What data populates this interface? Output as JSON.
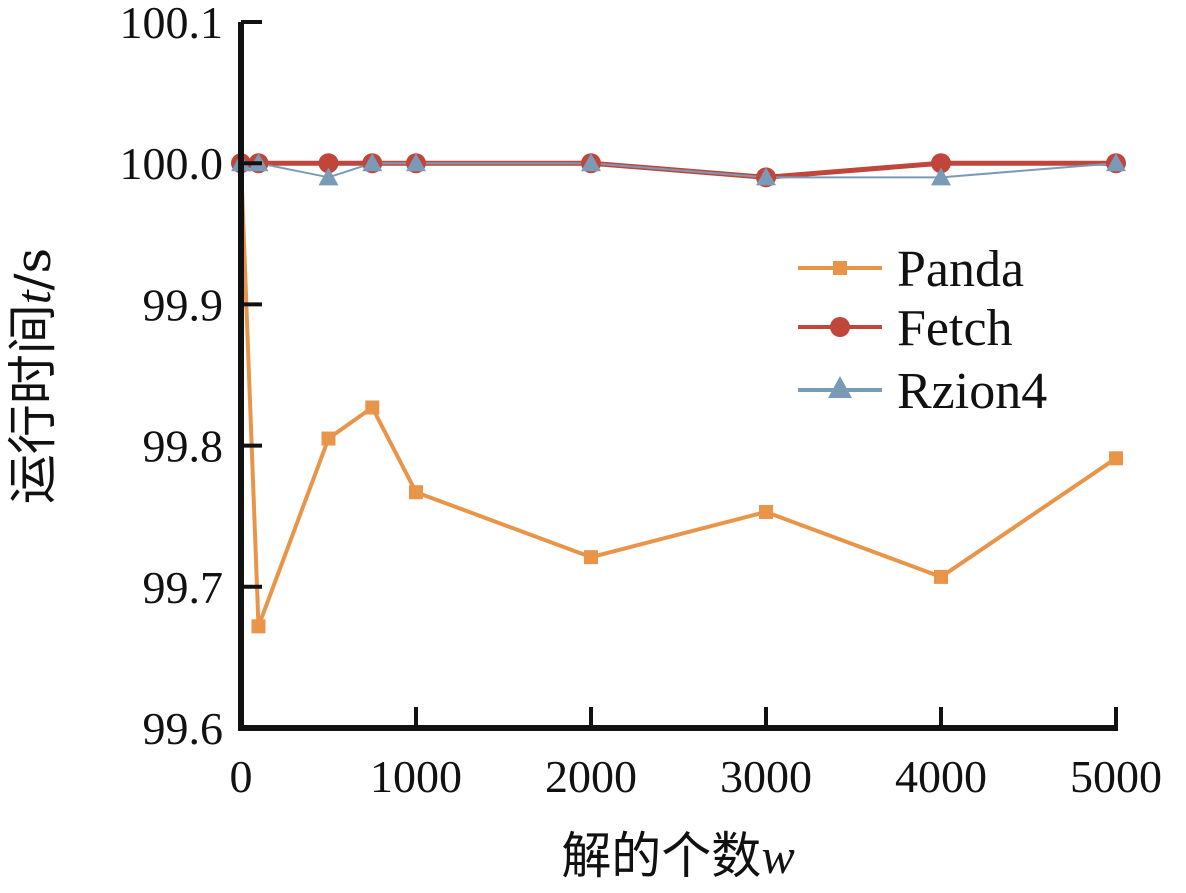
{
  "chart_data": {
    "type": "line",
    "xlabel": "解的个数",
    "xlabel_var": "w",
    "ylabel": "运行时间",
    "ylabel_var": "t",
    "ylabel_unit": "/s",
    "xlim": [
      0,
      5000
    ],
    "ylim": [
      99.6,
      100.1
    ],
    "xticks": [
      "0",
      "1000",
      "2000",
      "3000",
      "4000",
      "5000"
    ],
    "yticks": [
      "100.1",
      "100.0",
      "99.9",
      "99.8",
      "99.7",
      "99.6"
    ],
    "legend_position": "right-center",
    "series": [
      {
        "name": "Panda",
        "color": "#E8954A",
        "marker": "square",
        "x": [
          0,
          100,
          500,
          750,
          1000,
          2000,
          3000,
          4000,
          5000
        ],
        "y": [
          100.0,
          99.672,
          99.805,
          99.827,
          99.767,
          99.721,
          99.753,
          99.707,
          99.791
        ]
      },
      {
        "name": "Fetch",
        "color": "#C0453A",
        "marker": "circle",
        "x": [
          0,
          100,
          500,
          750,
          1000,
          2000,
          3000,
          4000,
          5000
        ],
        "y": [
          100.0,
          100.0,
          100.0,
          100.0,
          100.0,
          100.0,
          99.99,
          100.0,
          100.0
        ]
      },
      {
        "name": "Rzion4",
        "color": "#7A9BB8",
        "marker": "triangle",
        "x": [
          0,
          100,
          500,
          750,
          1000,
          2000,
          3000,
          4000,
          5000
        ],
        "y": [
          100.0,
          100.0,
          99.99,
          100.0,
          100.0,
          100.0,
          99.99,
          99.99,
          100.0
        ]
      }
    ]
  }
}
